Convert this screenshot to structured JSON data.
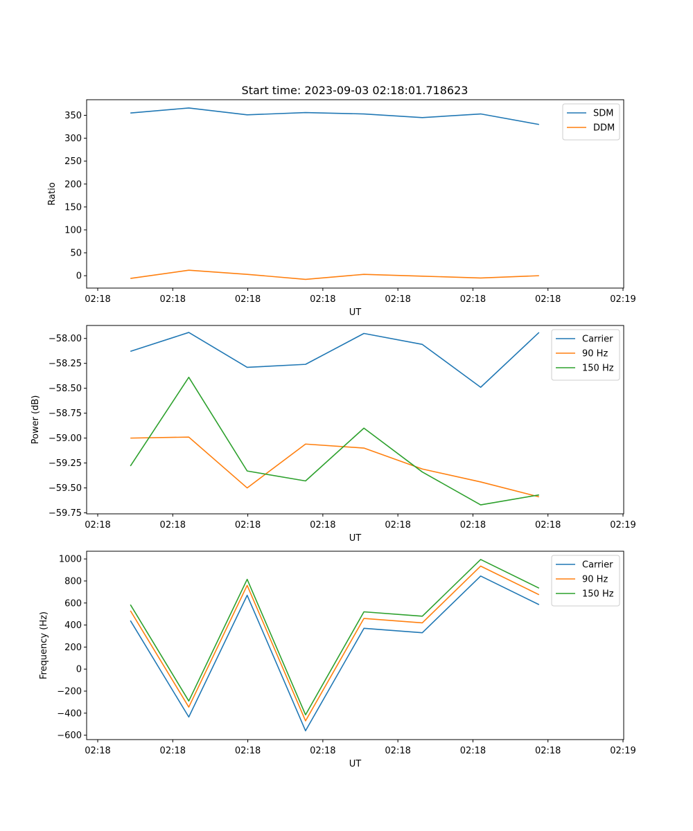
{
  "figure_title": "Start time: 2023-09-03 02:18:01.718623",
  "chart_data": [
    {
      "type": "line",
      "title": "Start time: 2023-09-03 02:18:01.718623",
      "xlabel": "UT",
      "ylabel": "Ratio",
      "x_tick_labels": [
        "02:18",
        "02:18",
        "02:18",
        "02:18",
        "02:18",
        "02:18",
        "02:18"
      ],
      "x_end_tick_label": "02:19",
      "x": [
        1,
        2,
        3,
        4,
        5,
        6,
        7,
        8
      ],
      "xlim": [
        0.25,
        9.45
      ],
      "ylim": [
        -27,
        384
      ],
      "yticks": [
        0,
        50,
        100,
        150,
        200,
        250,
        300,
        350
      ],
      "legend_position": "top-right",
      "series": [
        {
          "name": "SDM",
          "color": "#1f77b4",
          "values": [
            355,
            366,
            351,
            356,
            353,
            345,
            353,
            330
          ]
        },
        {
          "name": "DDM",
          "color": "#ff7f0e",
          "values": [
            -6,
            12,
            3,
            -8,
            3,
            -1,
            -5,
            0
          ]
        }
      ]
    },
    {
      "type": "line",
      "title": "",
      "xlabel": "UT",
      "ylabel": "Power (dB)",
      "x_tick_labels": [
        "02:18",
        "02:18",
        "02:18",
        "02:18",
        "02:18",
        "02:18",
        "02:18"
      ],
      "x_end_tick_label": "02:19",
      "x": [
        1,
        2,
        3,
        4,
        5,
        6,
        7,
        8
      ],
      "xlim": [
        0.25,
        9.45
      ],
      "ylim": [
        -59.76,
        -57.87
      ],
      "yticks": [
        -59.75,
        -59.5,
        -59.25,
        -59.0,
        -58.75,
        -58.5,
        -58.25,
        -58.0
      ],
      "ytick_labels": [
        "−59.75",
        "−59.50",
        "−59.25",
        "−59.00",
        "−58.75",
        "−58.50",
        "−58.25",
        "−58.00"
      ],
      "legend_position": "top-right",
      "series": [
        {
          "name": "Carrier",
          "color": "#1f77b4",
          "values": [
            -58.13,
            -57.94,
            -58.29,
            -58.26,
            -57.95,
            -58.06,
            -58.49,
            -57.94
          ]
        },
        {
          "name": "90 Hz",
          "color": "#ff7f0e",
          "values": [
            -59.0,
            -58.99,
            -59.5,
            -59.06,
            -59.1,
            -59.31,
            -59.44,
            -59.59
          ]
        },
        {
          "name": "150 Hz",
          "color": "#2ca02c",
          "values": [
            -59.28,
            -58.39,
            -59.33,
            -59.43,
            -58.9,
            -59.34,
            -59.67,
            -59.57
          ]
        }
      ]
    },
    {
      "type": "line",
      "title": "",
      "xlabel": "UT",
      "ylabel": "Frequency (Hz)",
      "x_tick_labels": [
        "02:18",
        "02:18",
        "02:18",
        "02:18",
        "02:18",
        "02:18",
        "02:18"
      ],
      "x_end_tick_label": "02:19",
      "x": [
        1,
        2,
        3,
        4,
        5,
        6,
        7,
        8
      ],
      "xlim": [
        0.25,
        9.45
      ],
      "ylim": [
        -640,
        1070
      ],
      "yticks": [
        -600,
        -400,
        -200,
        0,
        200,
        400,
        600,
        800,
        1000
      ],
      "ytick_labels": [
        "−600",
        "−400",
        "−200",
        "0",
        "200",
        "400",
        "600",
        "800",
        "1000"
      ],
      "legend_position": "top-right",
      "series": [
        {
          "name": "Carrier",
          "color": "#1f77b4",
          "values": [
            440,
            -435,
            670,
            -560,
            370,
            330,
            845,
            585
          ]
        },
        {
          "name": "90 Hz",
          "color": "#ff7f0e",
          "values": [
            530,
            -345,
            760,
            -470,
            460,
            420,
            935,
            675
          ]
        },
        {
          "name": "150 Hz",
          "color": "#2ca02c",
          "values": [
            585,
            -290,
            815,
            -415,
            520,
            480,
            995,
            735
          ]
        }
      ]
    }
  ]
}
